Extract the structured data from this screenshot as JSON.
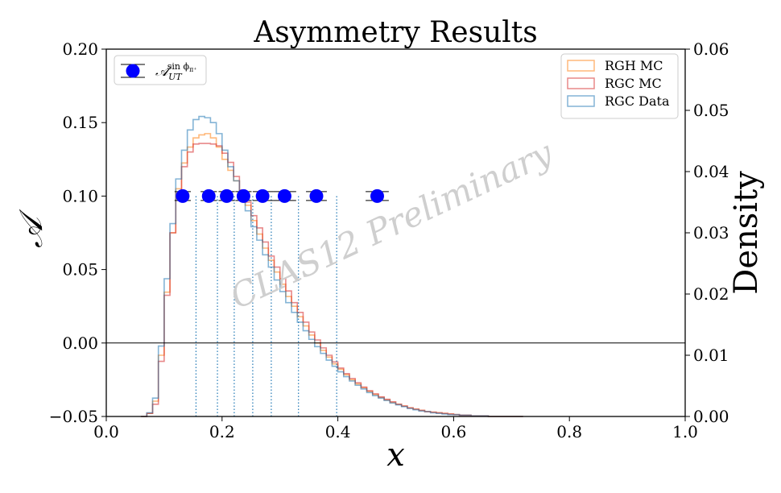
{
  "chart_data": {
    "type": "scatter",
    "title": "Asymmetry Results",
    "watermark": "CLAS12 Preliminary",
    "xlabel": "x",
    "ylabel_left": "𝒜",
    "ylabel_right": "Density",
    "xlim": [
      0.0,
      1.0
    ],
    "ylim_left": [
      -0.05,
      0.2
    ],
    "ylim_right": [
      0.0,
      0.06
    ],
    "x_ticks": [
      0.0,
      0.2,
      0.4,
      0.6,
      0.8,
      1.0
    ],
    "x_tick_labels": [
      "0.0",
      "0.2",
      "0.4",
      "0.6",
      "0.8",
      "1.0"
    ],
    "y_left_ticks": [
      -0.05,
      0.0,
      0.05,
      0.1,
      0.15,
      0.2
    ],
    "y_left_tick_labels": [
      "−0.05",
      "0.00",
      "0.05",
      "0.10",
      "0.15",
      "0.20"
    ],
    "y_right_ticks": [
      0.0,
      0.01,
      0.02,
      0.03,
      0.04,
      0.05,
      0.06
    ],
    "y_right_tick_labels": [
      "0.00",
      "0.01",
      "0.02",
      "0.03",
      "0.04",
      "0.05",
      "0.06"
    ],
    "zero_line": 0.0,
    "bin_edges": [
      0.155,
      0.192,
      0.221,
      0.253,
      0.285,
      0.332,
      0.398
    ],
    "asymmetry_series": {
      "name_base": "𝒜",
      "name_sub": "UT",
      "name_sup": "sin ϕ",
      "name_sup_sub": "π⁺",
      "color": "#0000ff",
      "x": [
        0.132,
        0.177,
        0.208,
        0.237,
        0.27,
        0.308,
        0.363,
        0.468
      ],
      "y": [
        0.1,
        0.1,
        0.1,
        0.1,
        0.1,
        0.1,
        0.1,
        0.1
      ],
      "xerr_low": [
        0.118,
        0.163,
        0.194,
        0.223,
        0.253,
        0.288,
        0.345,
        0.448
      ],
      "xerr_high": [
        0.146,
        0.191,
        0.222,
        0.251,
        0.288,
        0.328,
        0.381,
        0.488
      ],
      "yerr": [
        0.003,
        0.003,
        0.003,
        0.003,
        0.003,
        0.003,
        0.003,
        0.003
      ]
    },
    "histograms": {
      "bin_width": 0.01,
      "x_start": 0.06,
      "series": [
        {
          "name": "RGH MC",
          "color": "#ff7f0e",
          "values": [
            0.0,
            0.0005,
            0.0025,
            0.01,
            0.0203,
            0.03,
            0.0372,
            0.0414,
            0.044,
            0.0455,
            0.046,
            0.0462,
            0.0455,
            0.044,
            0.042,
            0.0402,
            0.0385,
            0.0365,
            0.0345,
            0.032,
            0.0298,
            0.0275,
            0.0255,
            0.0236,
            0.0216,
            0.0196,
            0.018,
            0.0163,
            0.0148,
            0.0133,
            0.012,
            0.0108,
            0.0097,
            0.0086,
            0.0077,
            0.0068,
            0.006,
            0.0053,
            0.0047,
            0.0041,
            0.0036,
            0.0031,
            0.0027,
            0.0023,
            0.002,
            0.0017,
            0.0014,
            0.0012,
            0.001,
            0.0008,
            0.0007,
            0.0006,
            0.0005,
            0.0004,
            0.0003,
            0.0002,
            0.0002,
            0.0001,
            0.0001,
            0.0001,
            0.0,
            0.0,
            0.0,
            0.0,
            0.0,
            0.0
          ]
        },
        {
          "name": "RGC MC",
          "color": "#d62728",
          "values": [
            0.0,
            0.0005,
            0.002,
            0.009,
            0.0198,
            0.03,
            0.0365,
            0.0408,
            0.0432,
            0.0445,
            0.0446,
            0.0446,
            0.0445,
            0.0442,
            0.043,
            0.0415,
            0.0392,
            0.037,
            0.035,
            0.0328,
            0.0308,
            0.0285,
            0.0262,
            0.0244,
            0.0225,
            0.0205,
            0.0186,
            0.017,
            0.0154,
            0.0138,
            0.0125,
            0.0112,
            0.01,
            0.0089,
            0.0079,
            0.007,
            0.0062,
            0.0055,
            0.0048,
            0.0042,
            0.0037,
            0.0032,
            0.0028,
            0.0024,
            0.002,
            0.0017,
            0.0014,
            0.0012,
            0.001,
            0.0008,
            0.0007,
            0.0006,
            0.0005,
            0.0004,
            0.0003,
            0.0002,
            0.0002,
            0.0001,
            0.0001,
            0.0001,
            0.0,
            0.0,
            0.0,
            0.0,
            0.0,
            0.0
          ]
        },
        {
          "name": "RGC Data",
          "color": "#1f77b4",
          "values": [
            0.0,
            0.0006,
            0.003,
            0.0115,
            0.0225,
            0.0315,
            0.0388,
            0.0435,
            0.0468,
            0.0485,
            0.049,
            0.0488,
            0.048,
            0.0462,
            0.0435,
            0.0408,
            0.0385,
            0.0358,
            0.0336,
            0.031,
            0.0288,
            0.0264,
            0.0244,
            0.0223,
            0.0204,
            0.0186,
            0.017,
            0.0154,
            0.014,
            0.0126,
            0.0114,
            0.0103,
            0.0092,
            0.0082,
            0.0073,
            0.0065,
            0.0058,
            0.0051,
            0.0045,
            0.0039,
            0.0034,
            0.003,
            0.0026,
            0.0022,
            0.0019,
            0.0016,
            0.0013,
            0.0011,
            0.0009,
            0.0008,
            0.0006,
            0.0005,
            0.0004,
            0.0003,
            0.0003,
            0.0002,
            0.0002,
            0.0001,
            0.0001,
            0.0001,
            0.0,
            0.0,
            0.0,
            0.0,
            0.0,
            0.0
          ]
        }
      ]
    },
    "legend_left_position": "upper-left",
    "legend_right_position": "upper-right",
    "grid": false
  }
}
